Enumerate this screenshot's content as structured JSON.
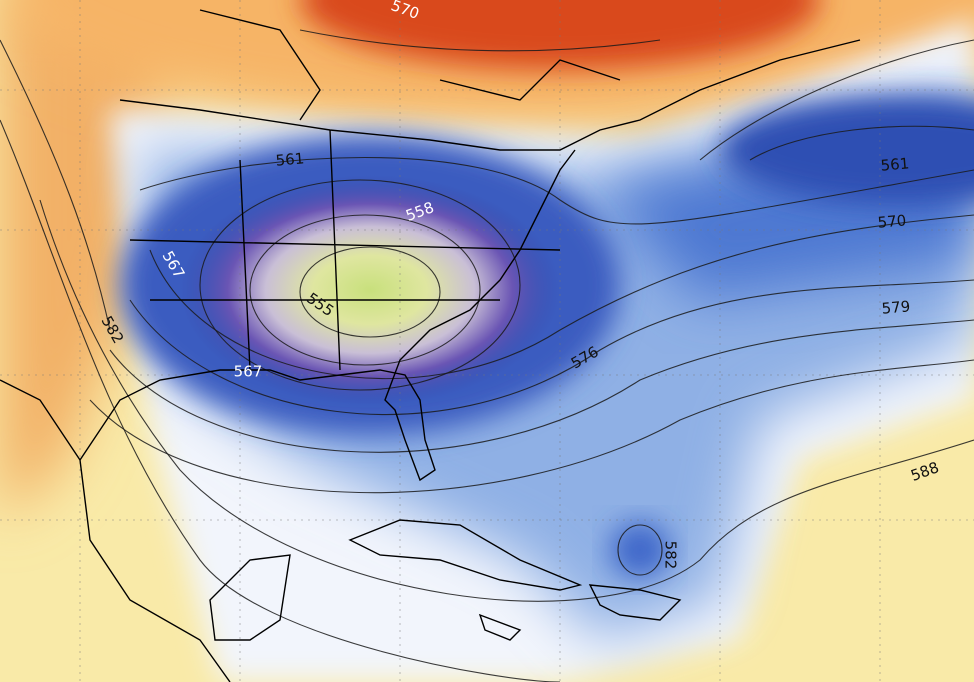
{
  "map": {
    "contour_labels": [
      570,
      561,
      558,
      567,
      555,
      567,
      582,
      561,
      570,
      579,
      576,
      582,
      588
    ]
  }
}
